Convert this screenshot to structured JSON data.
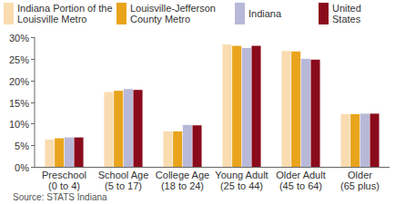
{
  "chart_data": {
    "type": "bar",
    "categories": [
      "Preschool\n(0 to 4)",
      "School Age\n(5 to 17)",
      "College Age\n(18 to 24)",
      "Young Adult\n(25 to 44)",
      "Older Adult\n(45 to 64)",
      "Older\n(65 plus)"
    ],
    "series": [
      {
        "name": "Indiana Portion of the\nLouisville Metro",
        "color": "#f9dcb0",
        "values": [
          6.3,
          17.3,
          8.2,
          28.3,
          26.8,
          12.2
        ]
      },
      {
        "name": "Louisville-Jefferson\nCounty Metro",
        "color": "#e9a41c",
        "values": [
          6.6,
          17.6,
          8.2,
          28.0,
          26.7,
          12.2
        ]
      },
      {
        "name": "Indiana",
        "color": "#b8b8d8",
        "values": [
          6.8,
          18.0,
          9.7,
          27.5,
          25.0,
          12.3
        ]
      },
      {
        "name": "United\nStates",
        "color": "#8a0b1c",
        "values": [
          6.8,
          17.8,
          9.6,
          28.0,
          24.8,
          12.3
        ]
      }
    ],
    "ylim": [
      0,
      30
    ],
    "yticks": [
      {
        "value": 0,
        "label": "0%"
      },
      {
        "value": 5,
        "label": "5%"
      },
      {
        "value": 10,
        "label": "10%"
      },
      {
        "value": 15,
        "label": "15%"
      },
      {
        "value": 20,
        "label": "20%"
      },
      {
        "value": 25,
        "label": "25%"
      },
      {
        "value": 30,
        "label": "30%"
      }
    ],
    "grid": false,
    "legend": "top",
    "source": "Source: STATS Indiana"
  }
}
